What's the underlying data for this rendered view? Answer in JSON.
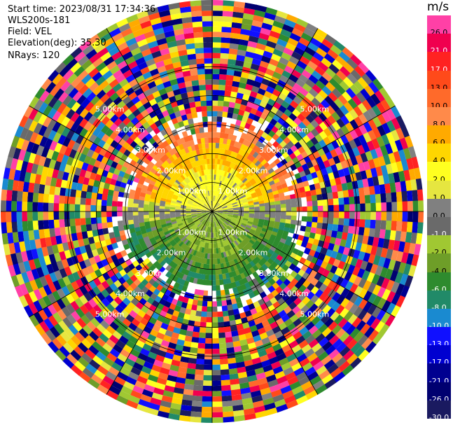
{
  "header": {
    "start_time": "Start time: 2023/08/31 17:34:36",
    "instrument": "WLS200s-181",
    "field": "Field: VEL",
    "elevation": "Elevation(deg): 35.30",
    "nrays": "NRays: 120"
  },
  "colorbar": {
    "unit": "m/s",
    "levels": [
      {
        "label": "26.0",
        "color": "#ff40a6"
      },
      {
        "label": "21.0",
        "color": "#f0004f"
      },
      {
        "label": "17.0",
        "color": "#ff2222"
      },
      {
        "label": "13.0",
        "color": "#ff4a1a"
      },
      {
        "label": "10.0",
        "color": "#ff6a2a"
      },
      {
        "label": "8.0",
        "color": "#ff8a4a"
      },
      {
        "label": "6.0",
        "color": "#ffaa00"
      },
      {
        "label": "4.0",
        "color": "#ffd600"
      },
      {
        "label": "2.0",
        "color": "#ffff20"
      },
      {
        "label": "1.0",
        "color": "#e6e640"
      },
      {
        "label": "0.0",
        "color": "#808080"
      },
      {
        "label": "-1.0",
        "color": "#6a6a6a"
      },
      {
        "label": "-2.0",
        "color": "#a0c832"
      },
      {
        "label": "-4.0",
        "color": "#6e9e28"
      },
      {
        "label": "-6.0",
        "color": "#2e8b2e"
      },
      {
        "label": "-8.0",
        "color": "#218a68"
      },
      {
        "label": "-10.0",
        "color": "#1a8ad0"
      },
      {
        "label": "-13.0",
        "color": "#1010ff"
      },
      {
        "label": "-17.0",
        "color": "#0000d0"
      },
      {
        "label": "-21.0",
        "color": "#000090"
      },
      {
        "label": "-26.0",
        "color": "#000070"
      },
      {
        "label": "-30.0",
        "color": "#1a1a60"
      }
    ]
  },
  "range_rings": [
    {
      "label": "1.00km"
    },
    {
      "label": "2.00km"
    },
    {
      "label": "3.00km"
    },
    {
      "label": "4.00km"
    },
    {
      "label": "5.00km"
    }
  ],
  "ppi": {
    "nrays": 120,
    "ngates": 40,
    "max_range_km": 7.3
  }
}
